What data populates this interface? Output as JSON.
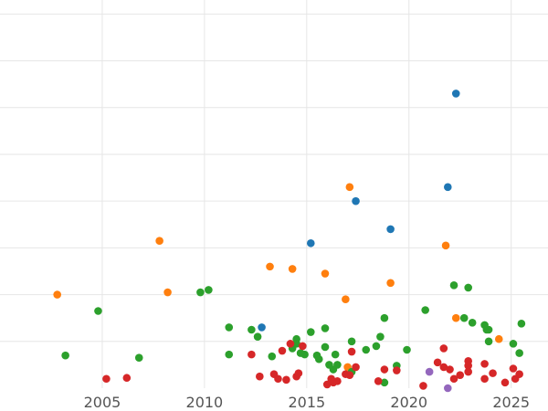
{
  "chart_data": {
    "type": "scatter",
    "title": "",
    "xlabel": "",
    "ylabel": "",
    "xlim": [
      2000,
      2026.8
    ],
    "ylim": [
      0,
      8.3
    ],
    "grid": true,
    "legend": "none",
    "xticks": [
      {
        "value": 2005,
        "label": "2005"
      },
      {
        "value": 2010,
        "label": "2010"
      },
      {
        "value": 2015,
        "label": "2015"
      },
      {
        "value": 2020,
        "label": "2020"
      },
      {
        "value": 2025,
        "label": "2025"
      }
    ],
    "ygrid": [
      1,
      2,
      3,
      4,
      5,
      6,
      7,
      8
    ],
    "series": [
      {
        "color": "#ff7f0e",
        "points": [
          [
            2002.8,
            2.0
          ],
          [
            2007.8,
            3.15
          ],
          [
            2008.2,
            2.05
          ],
          [
            2013.2,
            2.6
          ],
          [
            2014.3,
            2.55
          ],
          [
            2015.9,
            2.45
          ],
          [
            2016.9,
            1.9
          ],
          [
            2017.0,
            0.45
          ],
          [
            2017.1,
            4.3
          ],
          [
            2019.1,
            2.25
          ],
          [
            2021.8,
            3.05
          ],
          [
            2022.3,
            1.5
          ],
          [
            2024.4,
            1.05
          ]
        ]
      },
      {
        "color": "#1f77b4",
        "points": [
          [
            2012.8,
            1.3
          ],
          [
            2015.2,
            3.1
          ],
          [
            2017.4,
            4.0
          ],
          [
            2019.1,
            3.4
          ],
          [
            2021.9,
            4.3
          ],
          [
            2022.3,
            6.3
          ]
        ]
      },
      {
        "color": "#2ca02c",
        "points": [
          [
            2003.2,
            0.7
          ],
          [
            2004.8,
            1.65
          ],
          [
            2006.8,
            0.65
          ],
          [
            2009.8,
            2.05
          ],
          [
            2010.2,
            2.1
          ],
          [
            2011.2,
            1.3
          ],
          [
            2011.2,
            0.72
          ],
          [
            2012.3,
            1.25
          ],
          [
            2012.6,
            1.1
          ],
          [
            2013.3,
            0.68
          ],
          [
            2014.3,
            0.85
          ],
          [
            2014.5,
            1.05
          ],
          [
            2014.5,
            0.95
          ],
          [
            2014.7,
            0.75
          ],
          [
            2014.9,
            0.72
          ],
          [
            2015.2,
            1.2
          ],
          [
            2015.5,
            0.7
          ],
          [
            2015.6,
            0.62
          ],
          [
            2015.9,
            0.88
          ],
          [
            2015.9,
            1.28
          ],
          [
            2016.1,
            0.5
          ],
          [
            2016.3,
            0.4
          ],
          [
            2016.4,
            0.72
          ],
          [
            2016.5,
            0.5
          ],
          [
            2017.2,
            0.35
          ],
          [
            2017.2,
            1.0
          ],
          [
            2017.9,
            0.82
          ],
          [
            2018.4,
            0.9
          ],
          [
            2018.6,
            1.1
          ],
          [
            2018.8,
            1.5
          ],
          [
            2018.8,
            0.12
          ],
          [
            2019.4,
            0.48
          ],
          [
            2019.9,
            0.82
          ],
          [
            2020.8,
            1.67
          ],
          [
            2022.2,
            2.2
          ],
          [
            2022.7,
            1.5
          ],
          [
            2022.9,
            2.15
          ],
          [
            2023.1,
            1.4
          ],
          [
            2023.7,
            1.35
          ],
          [
            2023.8,
            1.25
          ],
          [
            2023.9,
            1.25
          ],
          [
            2023.9,
            1.0
          ],
          [
            2025.1,
            0.95
          ],
          [
            2025.4,
            0.75
          ],
          [
            2025.5,
            1.38
          ]
        ]
      },
      {
        "color": "#d62728",
        "points": [
          [
            2005.2,
            0.2
          ],
          [
            2006.2,
            0.22
          ],
          [
            2012.3,
            0.72
          ],
          [
            2012.7,
            0.25
          ],
          [
            2013.4,
            0.3
          ],
          [
            2013.6,
            0.2
          ],
          [
            2013.8,
            0.8
          ],
          [
            2014.0,
            0.18
          ],
          [
            2014.2,
            0.95
          ],
          [
            2014.5,
            0.25
          ],
          [
            2014.6,
            0.32
          ],
          [
            2014.8,
            0.9
          ],
          [
            2016.0,
            0.08
          ],
          [
            2016.2,
            0.2
          ],
          [
            2016.3,
            0.12
          ],
          [
            2016.5,
            0.15
          ],
          [
            2016.9,
            0.3
          ],
          [
            2017.1,
            0.28
          ],
          [
            2017.2,
            0.78
          ],
          [
            2017.4,
            0.45
          ],
          [
            2018.5,
            0.15
          ],
          [
            2018.8,
            0.4
          ],
          [
            2019.4,
            0.38
          ],
          [
            2020.7,
            0.05
          ],
          [
            2021.4,
            0.55
          ],
          [
            2021.7,
            0.45
          ],
          [
            2021.7,
            0.85
          ],
          [
            2022.0,
            0.4
          ],
          [
            2022.2,
            0.2
          ],
          [
            2022.5,
            0.28
          ],
          [
            2022.9,
            0.58
          ],
          [
            2022.9,
            0.48
          ],
          [
            2022.9,
            0.35
          ],
          [
            2023.7,
            0.52
          ],
          [
            2023.7,
            0.2
          ],
          [
            2024.1,
            0.32
          ],
          [
            2024.7,
            0.12
          ],
          [
            2025.1,
            0.42
          ],
          [
            2025.2,
            0.2
          ],
          [
            2025.4,
            0.3
          ]
        ]
      },
      {
        "color": "#9467bd",
        "points": [
          [
            2021.0,
            0.35
          ],
          [
            2021.9,
            0.0
          ]
        ]
      }
    ]
  }
}
